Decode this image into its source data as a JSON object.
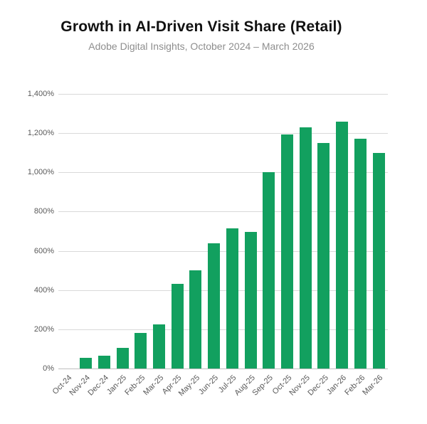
{
  "header": {
    "title": "Growth in AI-Driven Visit Share (Retail)",
    "subtitle": "Adobe Digital Insights, October 2024 – March 2026"
  },
  "chart_data": {
    "type": "bar",
    "title": "Growth in AI-Driven Visit Share (Retail)",
    "subtitle": "Adobe Digital Insights, October 2024 – March 2026",
    "categories": [
      "Oct-24",
      "Nov-24",
      "Dec-24",
      "Jan-25",
      "Feb-25",
      "Mar-25",
      "Apr-25",
      "May-25",
      "Jun-25",
      "Jul-25",
      "Aug-25",
      "Sep-25",
      "Oct-25",
      "Nov-25",
      "Dec-25",
      "Jan-26",
      "Feb-26",
      "Mar-26"
    ],
    "values": [
      0,
      55,
      65,
      105,
      180,
      225,
      430,
      500,
      640,
      715,
      695,
      1000,
      1195,
      1230,
      1150,
      1260,
      1170,
      1100
    ],
    "xlabel": "",
    "ylabel": "",
    "ylim": [
      0,
      1400
    ],
    "ytick_step": 200,
    "ytick_labels": [
      "0%",
      "200%",
      "400%",
      "600%",
      "800%",
      "1,000%",
      "1,200%",
      "1,400%"
    ],
    "grid": true,
    "legend": false,
    "colors": {
      "bar": "#12a05f",
      "gridline": "#d9d9d9",
      "axis_line": "#bfbfbf",
      "tick_label": "#595959",
      "title": "#111111",
      "subtitle": "#8e8e8e",
      "background": "#ffffff"
    }
  }
}
